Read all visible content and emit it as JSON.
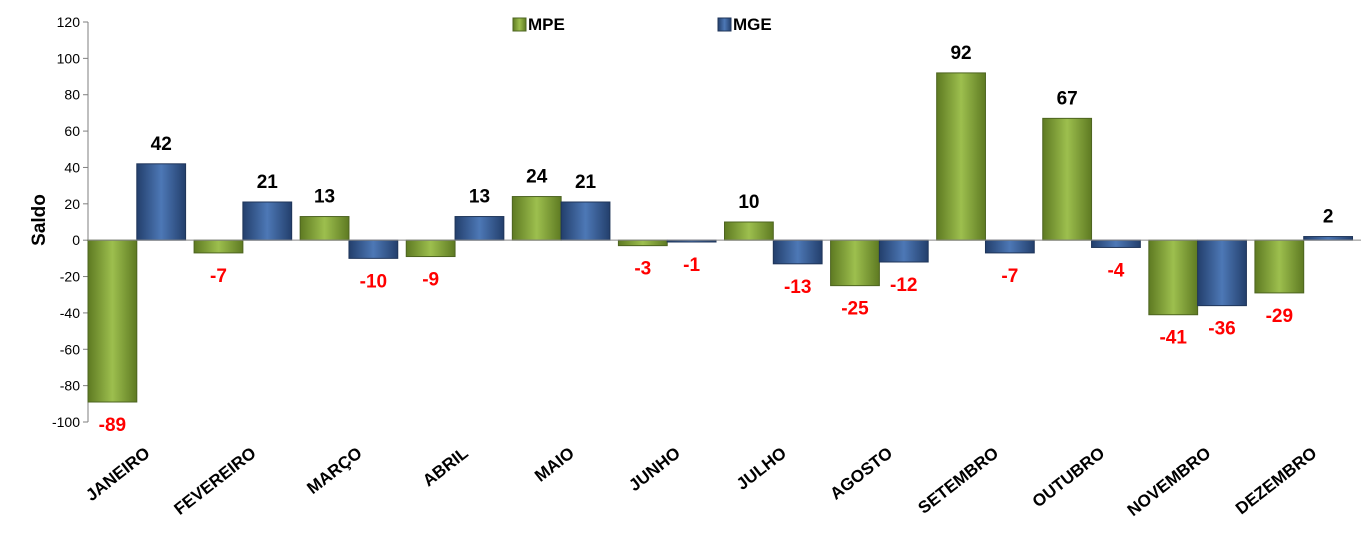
{
  "chart_data": {
    "type": "bar",
    "ylabel": "Saldo",
    "xlabel": "",
    "ylim": [
      -100,
      120
    ],
    "yticks": [
      120,
      100,
      80,
      60,
      40,
      20,
      0,
      -20,
      -40,
      -60,
      -80,
      -100
    ],
    "categories": [
      "JANEIRO",
      "FEVEREIRO",
      "MARÇO",
      "ABRIL",
      "MAIO",
      "JUNHO",
      "JULHO",
      "AGOSTO",
      "SETEMBRO",
      "OUTUBRO",
      "NOVEMBRO",
      "DEZEMBRO"
    ],
    "series": [
      {
        "name": "MPE",
        "color": "#86a83a",
        "values": [
          -89,
          -7,
          13,
          -9,
          24,
          -3,
          10,
          -25,
          92,
          67,
          -41,
          -29
        ]
      },
      {
        "name": "MGE",
        "color": "#3a64a0",
        "values": [
          42,
          21,
          -10,
          13,
          21,
          -1,
          -13,
          -12,
          -7,
          -4,
          -36,
          2
        ]
      }
    ],
    "label_colors": {
      "positive": "#000000",
      "negative": "#ff0000"
    },
    "legend_position": "top",
    "grid": false
  }
}
